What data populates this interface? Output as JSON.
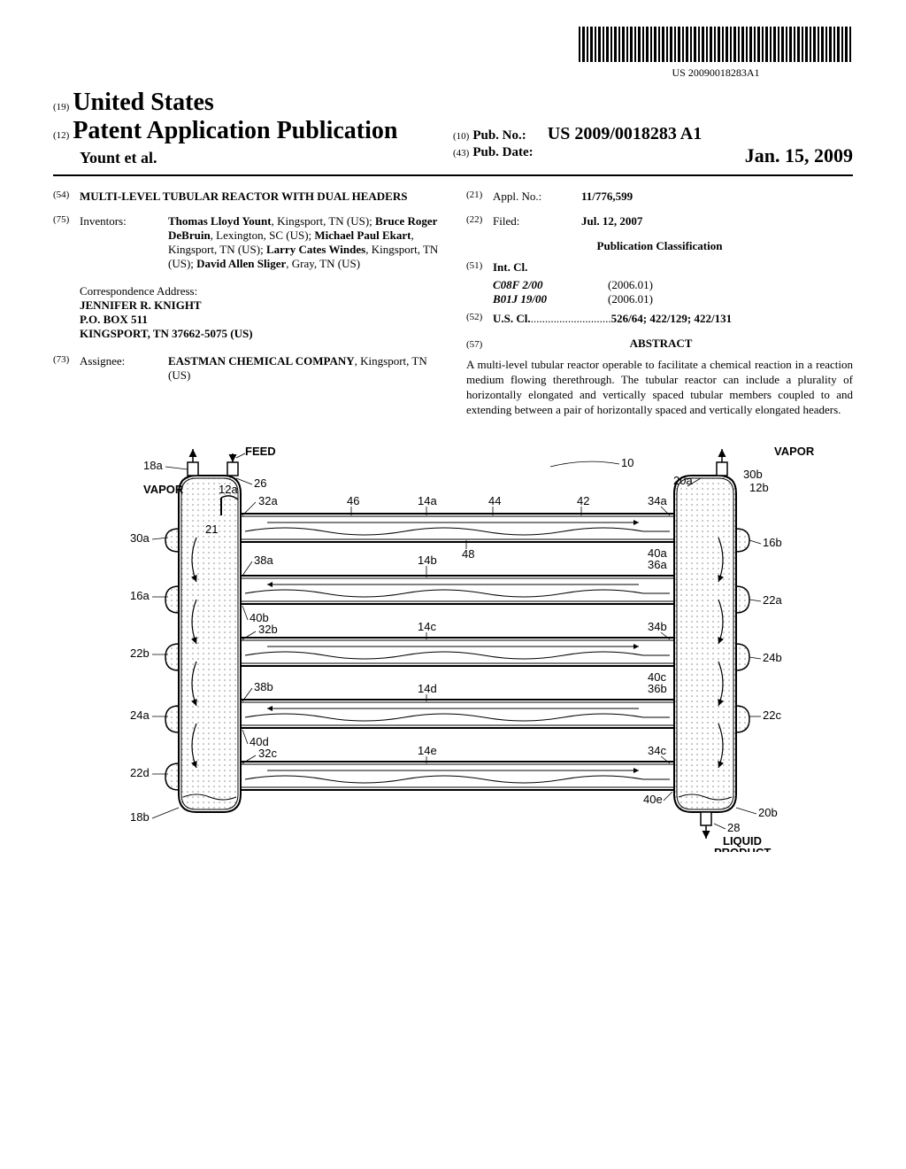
{
  "barcode_text": "US 20090018283A1",
  "header": {
    "code19": "(19)",
    "country": "United States",
    "code12": "(12)",
    "pub_type": "Patent Application Publication",
    "authors": "Yount et al.",
    "code10": "(10)",
    "pub_no_label": "Pub. No.:",
    "pub_no": "US 2009/0018283 A1",
    "code43": "(43)",
    "pub_date_label": "Pub. Date:",
    "pub_date": "Jan. 15, 2009"
  },
  "fields": {
    "code54": "(54)",
    "title": "MULTI-LEVEL TUBULAR REACTOR WITH DUAL HEADERS",
    "code75": "(75)",
    "inventors_label": "Inventors:",
    "inventors": [
      {
        "name": "Thomas Lloyd Yount",
        "loc": ", Kingsport, TN (US); "
      },
      {
        "name": "Bruce Roger DeBruin",
        "loc": ", Lexington, SC (US); "
      },
      {
        "name": "Michael Paul Ekart",
        "loc": ", Kingsport, TN (US); "
      },
      {
        "name": "Larry Cates Windes",
        "loc": ", Kingsport, TN (US); "
      },
      {
        "name": "David Allen Sliger",
        "loc": ", Gray, TN (US)"
      }
    ],
    "corr_label": "Correspondence Address:",
    "corr_lines": [
      "JENNIFER R. KNIGHT",
      "P.O. BOX 511",
      "KINGSPORT, TN 37662-5075 (US)"
    ],
    "code73": "(73)",
    "assignee_label": "Assignee:",
    "assignee_name": "EASTMAN CHEMICAL COMPANY",
    "assignee_loc": ", Kingsport, TN (US)",
    "code21": "(21)",
    "appl_no_label": "Appl. No.:",
    "appl_no": "11/776,599",
    "code22": "(22)",
    "filed_label": "Filed:",
    "filed": "Jul. 12, 2007",
    "pub_class_header": "Publication Classification",
    "code51": "(51)",
    "int_cl_label": "Int. Cl.",
    "int_cl": [
      {
        "code": "C08F 2/00",
        "year": "(2006.01)"
      },
      {
        "code": "B01J 19/00",
        "year": "(2006.01)"
      }
    ],
    "code52": "(52)",
    "us_cl_label": "U.S. Cl.",
    "us_cl_dots": " ............................ ",
    "us_cl": "526/64; 422/129; 422/131",
    "code57": "(57)",
    "abstract_header": "ABSTRACT",
    "abstract": "A multi-level tubular reactor operable to facilitate a chemical reaction in a reaction medium flowing therethrough. The tubular reactor can include a plurality of horizontally elongated and vertically spaced tubular members coupled to and extending between a pair of horizontally spaced and vertically elongated headers."
  },
  "figure": {
    "external_labels": {
      "feed": "FEED",
      "vapor": "VAPOR",
      "liquid_product": "LIQUID PRODUCT",
      "l18a": "18a",
      "l18b": "18b",
      "l30a": "30a",
      "l30b": "30b",
      "l16a": "16a",
      "l16b": "16b",
      "l22a": "22a",
      "l22b": "22b",
      "l22c": "22c",
      "l22d": "22d",
      "l24a": "24a",
      "l24b": "24b",
      "l20a": "20a",
      "l20b": "20b",
      "l12a": "12a",
      "l12b": "12b",
      "l10": "10",
      "l26": "26",
      "l28": "28",
      "l32a": "32a",
      "l32b": "32b",
      "l32c": "32c",
      "l34a": "34a",
      "l34b": "34b",
      "l34c": "34c",
      "l36a": "36a",
      "l36b": "36b",
      "l38a": "38a",
      "l38b": "38b",
      "l40a": "40a",
      "l40b": "40b",
      "l40c": "40c",
      "l40d": "40d",
      "l40e": "40e",
      "l42": "42",
      "l44": "44",
      "l46": "46",
      "l48": "48",
      "l14a": "14a",
      "l14b": "14b",
      "l14c": "14c",
      "l14d": "14d",
      "l14e": "14e",
      "l21": "21"
    },
    "colors": {
      "stroke": "#000000",
      "fill_light": "#f5f5f5",
      "fill_pattern": "#d0d0d0"
    }
  }
}
